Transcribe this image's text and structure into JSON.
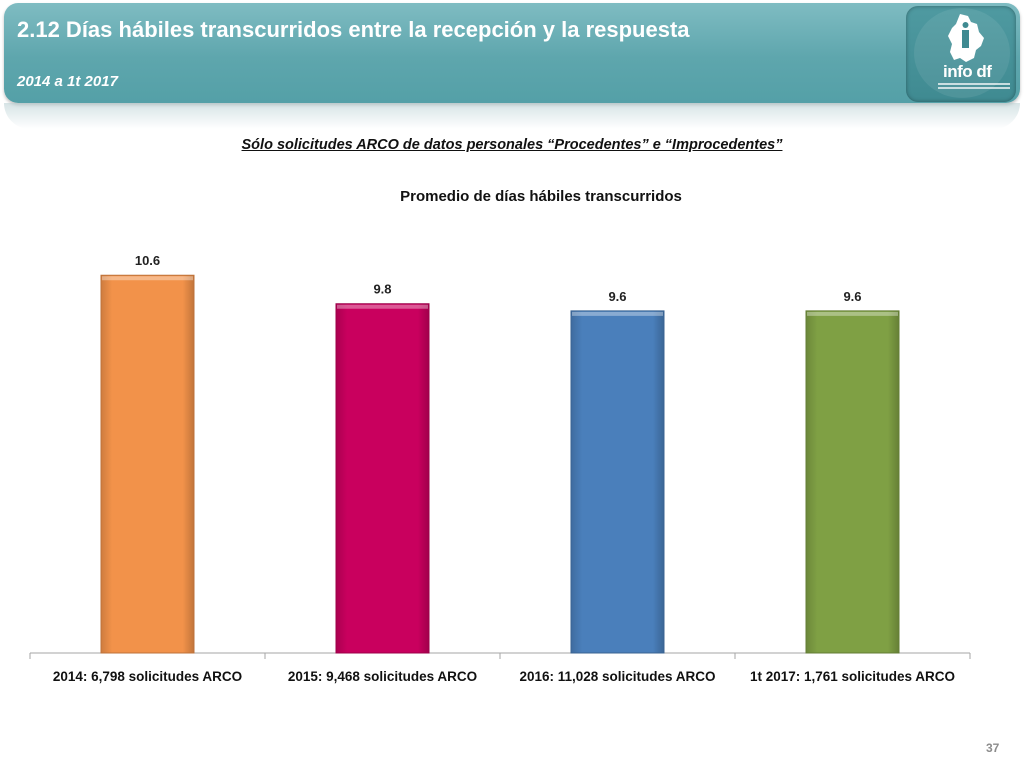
{
  "header": {
    "title": "2.12 Días hábiles transcurridos entre la recepción y la respuesta",
    "subtitle": "2014 a 1t 2017",
    "logo_text": "info df",
    "accent_color": "#5ea6ad"
  },
  "section_heading": "Sólo solicitudes ARCO de datos personales “Procedentes” e “Improcedentes”",
  "page_number": "37",
  "chart_data": {
    "type": "bar",
    "title": "Promedio de días hábiles transcurridos",
    "xlabel": "",
    "ylabel": "",
    "ylim": [
      0,
      12.15
    ],
    "grid": false,
    "legend": "none",
    "categories": [
      "2014: 6,798 solicitudes ARCO",
      "2015: 9,468 solicitudes ARCO",
      "2016: 11,028 solicitudes ARCO",
      "1t 2017:  1,761 solicitudes ARCO"
    ],
    "values": [
      10.6,
      9.8,
      9.6,
      9.6
    ],
    "data_labels": [
      "10.6",
      "9.8",
      "9.6",
      "9.6"
    ],
    "colors": [
      "#f2924a",
      "#c9005e",
      "#4a7fbb",
      "#7fa044"
    ]
  }
}
